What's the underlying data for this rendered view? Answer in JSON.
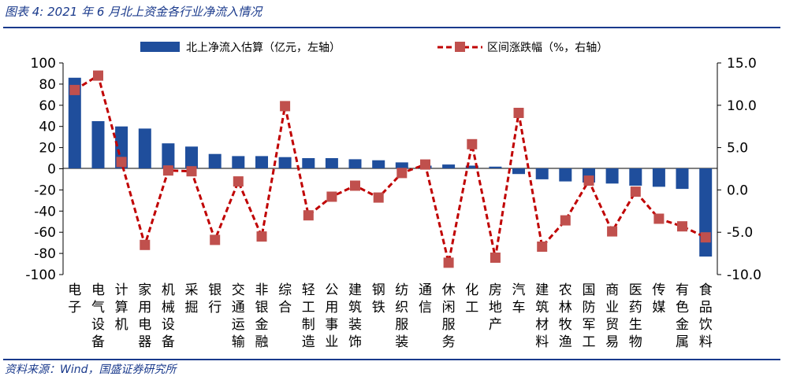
{
  "title": "图表 4:  2021 年 6 月北上资金各行业净流入情况",
  "source": "资料来源：Wind，国盛证券研究所",
  "colors": {
    "bar": "#1f4e9c",
    "line": "#c00000",
    "marker": "#c0504d",
    "axis": "#000000",
    "title": "#1a3a8c"
  },
  "chart_data": {
    "type": "bar",
    "categories": [
      "电子",
      "电气设备",
      "计算机",
      "家用电器",
      "机械设备",
      "采掘",
      "银行",
      "交通运输",
      "非银金融",
      "综合",
      "轻工制造",
      "公用事业",
      "建筑装饰",
      "钢铁",
      "纺织服装",
      "通信",
      "休闲服务",
      "化工",
      "房地产",
      "汽车",
      "建筑材料",
      "农林牧渔",
      "国防军工",
      "商业贸易",
      "医药生物",
      "传媒",
      "有色金属",
      "食品饮料"
    ],
    "legend_placement": "top",
    "series": [
      {
        "name": "北上净流入估算（亿元，左轴）",
        "type": "bar",
        "axis": "left",
        "values": [
          86,
          45,
          40,
          38,
          24,
          21,
          14,
          12,
          12,
          11,
          10,
          10,
          9,
          8,
          6,
          3,
          4,
          3,
          2,
          -5,
          -10,
          -12,
          -13,
          -14,
          -16,
          -17,
          -19,
          -83
        ]
      },
      {
        "name": "区间涨跌幅（%，右轴）",
        "type": "line",
        "axis": "right",
        "values": [
          11.8,
          13.5,
          3.3,
          -6.5,
          2.3,
          2.2,
          -5.9,
          1.0,
          -5.5,
          9.9,
          -3.0,
          -0.8,
          0.5,
          -0.9,
          2.0,
          3.0,
          -8.6,
          5.4,
          -8.0,
          9.1,
          -6.7,
          -3.6,
          1.1,
          -4.9,
          -0.2,
          -3.4,
          -4.3,
          -5.6
        ]
      }
    ],
    "y_left": {
      "lim": [
        -100,
        100
      ],
      "ticks": [
        100,
        80,
        60,
        40,
        20,
        0,
        -20,
        -40,
        -60,
        -80,
        -100
      ]
    },
    "y_right": {
      "lim": [
        -10,
        15
      ],
      "ticks": [
        "15.0",
        "10.0",
        "5.0",
        "0.0",
        "-5.0",
        "-10.0"
      ]
    },
    "grid": false
  }
}
